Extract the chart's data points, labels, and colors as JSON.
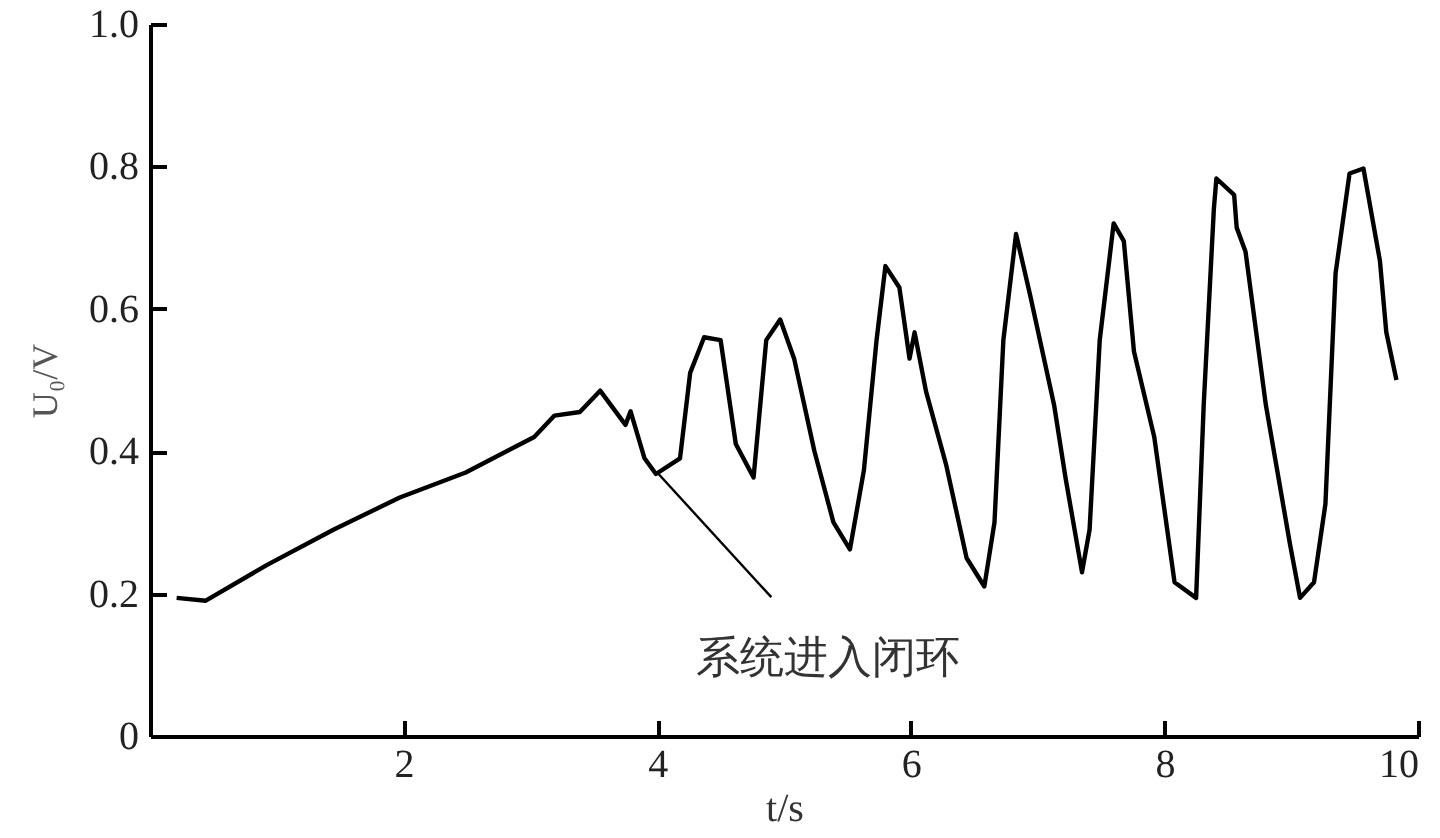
{
  "chart_data": {
    "type": "line",
    "xlabel": "t/s",
    "ylabel": "U₀/V",
    "xlim": [
      0,
      10
    ],
    "ylim": [
      0,
      1
    ],
    "xticks": [
      2,
      4,
      6,
      8,
      10
    ],
    "yticks": [
      0,
      0.2,
      0.4,
      0.6,
      0.8,
      {
        "value": 1,
        "label": "1.0"
      }
    ],
    "marker": "none",
    "line_style": "solid",
    "annotations": [
      {
        "text": "系统进入闭环",
        "x": 4.0,
        "y": 0.37
      }
    ],
    "series": [
      {
        "color": "#000000",
        "x": [
          0.21,
          0.44,
          0.92,
          1.45,
          1.97,
          2.49,
          3.03,
          3.19,
          3.39,
          3.55,
          3.75,
          3.79,
          3.9,
          3.99,
          4.18,
          4.26,
          4.37,
          4.5,
          4.62,
          4.76,
          4.86,
          4.97,
          5.08,
          5.24,
          5.39,
          5.52,
          5.63,
          5.73,
          5.8,
          5.91,
          5.99,
          6.03,
          6.12,
          6.28,
          6.44,
          6.58,
          6.66,
          6.73,
          6.83,
          6.94,
          7.13,
          7.22,
          7.35,
          7.41,
          7.49,
          7.6,
          7.68,
          7.76,
          7.92,
          8.08,
          8.25,
          8.31,
          8.39,
          8.41,
          8.55,
          8.57,
          8.64,
          8.8,
          8.99,
          9.07,
          9.18,
          9.27,
          9.35,
          9.46,
          9.57,
          9.7,
          9.75,
          9.83
        ],
        "values": [
          0.194,
          0.19,
          0.24,
          0.29,
          0.335,
          0.37,
          0.42,
          0.45,
          0.455,
          0.485,
          0.437,
          0.456,
          0.39,
          0.368,
          0.39,
          0.51,
          0.56,
          0.556,
          0.41,
          0.363,
          0.556,
          0.585,
          0.53,
          0.4,
          0.3,
          0.262,
          0.373,
          0.556,
          0.66,
          0.63,
          0.53,
          0.567,
          0.484,
          0.38,
          0.25,
          0.21,
          0.3,
          0.556,
          0.705,
          0.62,
          0.465,
          0.363,
          0.23,
          0.29,
          0.556,
          0.72,
          0.695,
          0.54,
          0.42,
          0.216,
          0.194,
          0.465,
          0.74,
          0.783,
          0.76,
          0.714,
          0.68,
          0.465,
          0.27,
          0.194,
          0.216,
          0.326,
          0.65,
          0.79,
          0.797,
          0.667,
          0.567,
          0.5
        ]
      }
    ]
  }
}
